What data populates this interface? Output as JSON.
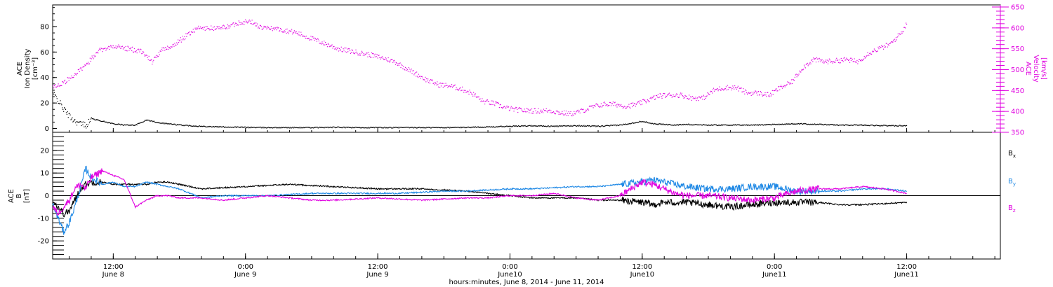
{
  "colors": {
    "axis": "#000000",
    "density": "#000000",
    "velocity": "#e000e0",
    "bx": "#000000",
    "by": "#1e88e5",
    "bz": "#e000e0"
  },
  "xaxis": {
    "label": "hours:minutes, June  8, 2014 - June 11, 2014",
    "range_hours": [
      6.5,
      92.5
    ],
    "ticks": [
      {
        "hour": 12,
        "time": "12:00",
        "day": "June 8"
      },
      {
        "hour": 24,
        "time": "0:00",
        "day": "June 9"
      },
      {
        "hour": 36,
        "time": "12:00",
        "day": "June 9"
      },
      {
        "hour": 48,
        "time": "0:00",
        "day": "June10"
      },
      {
        "hour": 60,
        "time": "12:00",
        "day": "June10"
      },
      {
        "hour": 72,
        "time": "0:00",
        "day": "June11"
      },
      {
        "hour": 84,
        "time": "12:00",
        "day": "June11"
      }
    ]
  },
  "chart_data": [
    {
      "type": "scatter",
      "panel": "top",
      "ylabel_left": [
        "ACE",
        "Ion Density",
        "[cm⁻³]"
      ],
      "ylabel_right": [
        "ACE",
        "Velocity",
        "[km/s]"
      ],
      "ylim_left": [
        -3,
        97
      ],
      "yticks_left": [
        0,
        20,
        40,
        60,
        80
      ],
      "ylim_right": [
        350,
        655
      ],
      "yticks_right": [
        350,
        400,
        450,
        500,
        550,
        600,
        650
      ],
      "series": [
        {
          "key": "density",
          "axis": "left",
          "x_hours": [
            6.5,
            7,
            7.5,
            8,
            8.5,
            9,
            9.5,
            10,
            11,
            12,
            13,
            14,
            15,
            16,
            17,
            18,
            19,
            20,
            22,
            24,
            26,
            28,
            30,
            32,
            34,
            36,
            38,
            40,
            42,
            44,
            46,
            48,
            50,
            52,
            54,
            56,
            58,
            60,
            61,
            62,
            63,
            64,
            66,
            68,
            70,
            72,
            74,
            76,
            78,
            80,
            82,
            84
          ],
          "values": [
            28,
            22,
            15,
            10,
            6,
            4,
            3,
            8,
            6,
            4,
            3,
            3,
            7,
            5,
            4,
            3,
            2.5,
            2,
            1.5,
            1.2,
            1,
            1,
            1,
            1.2,
            1,
            1,
            1,
            1,
            1,
            1.2,
            1.5,
            2,
            2.5,
            2,
            2.5,
            2,
            3,
            6,
            4,
            3.5,
            3,
            3.5,
            3,
            3,
            3,
            3.5,
            4,
            3.5,
            3,
            3,
            2.5,
            2.5
          ]
        },
        {
          "key": "velocity",
          "axis": "right",
          "x_hours": [
            6.5,
            7.5,
            8.5,
            9.5,
            10.5,
            11.5,
            12.5,
            13.5,
            14.5,
            15.5,
            16.5,
            17.5,
            18.5,
            19.5,
            20.5,
            21.5,
            22.5,
            23.5,
            24.5,
            25.5,
            26.5,
            27.5,
            28.5,
            29.5,
            30.5,
            31.5,
            32.5,
            33.5,
            34.5,
            35.5,
            36.5,
            37.5,
            38.5,
            39.5,
            40.5,
            41.5,
            42.5,
            43.5,
            44.5,
            45.5,
            46.5,
            47.5,
            48.5,
            49.5,
            50.5,
            51.5,
            52.5,
            53.5,
            54.5,
            55.5,
            56.5,
            57.5,
            58.5,
            59.5,
            60.5,
            61.5,
            62.5,
            63.5,
            64.5,
            65.5,
            66.5,
            67.5,
            68.5,
            69.5,
            70.5,
            71.5,
            72.5,
            73.5,
            74.5,
            75.5,
            76.5,
            77.5,
            78.5,
            79.5,
            80.5,
            81.5,
            82.5,
            83.5,
            84.0
          ],
          "values": [
            460,
            470,
            490,
            510,
            545,
            555,
            555,
            550,
            545,
            520,
            550,
            560,
            580,
            600,
            600,
            600,
            605,
            615,
            615,
            600,
            600,
            595,
            590,
            580,
            570,
            560,
            550,
            545,
            540,
            535,
            528,
            520,
            505,
            490,
            475,
            465,
            462,
            455,
            445,
            425,
            420,
            410,
            405,
            403,
            402,
            403,
            398,
            395,
            402,
            412,
            418,
            418,
            413,
            418,
            428,
            438,
            440,
            440,
            433,
            433,
            452,
            458,
            458,
            445,
            445,
            440,
            458,
            470,
            505,
            525,
            520,
            522,
            525,
            520,
            540,
            552,
            562,
            590,
            612
          ]
        }
      ]
    },
    {
      "type": "line",
      "panel": "bottom",
      "ylabel_left": [
        "ACE",
        "B",
        "[nT]"
      ],
      "ylim": [
        -28,
        28
      ],
      "yticks": [
        -20,
        -10,
        0,
        10,
        20
      ],
      "zero_line": true,
      "series": [
        {
          "key": "bx",
          "name": "Bx",
          "x_hours": [
            6.5,
            7,
            7.5,
            8,
            8.5,
            9,
            9.5,
            10,
            11,
            12,
            13,
            14,
            15,
            16,
            17,
            18,
            19,
            20,
            22,
            24,
            26,
            28,
            30,
            32,
            34,
            36,
            38,
            40,
            42,
            44,
            46,
            48,
            50,
            52,
            54,
            56,
            58,
            60,
            61,
            62,
            63,
            64,
            66,
            68,
            70,
            72,
            74,
            76,
            78,
            80,
            82,
            84
          ],
          "values": [
            -2,
            -5,
            -8,
            -7,
            -2,
            3,
            5,
            6,
            6,
            5,
            5,
            5,
            5,
            6,
            6,
            5,
            4,
            3,
            3.5,
            4,
            4.5,
            5,
            4.5,
            4,
            3.5,
            3,
            3,
            3,
            2.5,
            2,
            1,
            0,
            -1,
            -1,
            -1,
            -2,
            -2,
            -3,
            -4,
            -3,
            -3,
            -3,
            -4,
            -5,
            -4,
            -3,
            -3,
            -3,
            -4,
            -4,
            -3.5,
            -3
          ]
        },
        {
          "key": "by",
          "name": "By",
          "x_hours": [
            6.5,
            7,
            7.5,
            8,
            8.5,
            9,
            9.5,
            10,
            11,
            12,
            13,
            14,
            15,
            16,
            17,
            18,
            19,
            20,
            22,
            24,
            26,
            28,
            30,
            32,
            34,
            36,
            38,
            40,
            42,
            44,
            46,
            48,
            50,
            52,
            54,
            56,
            58,
            60,
            61,
            62,
            63,
            64,
            66,
            68,
            70,
            72,
            74,
            76,
            78,
            80,
            82,
            84
          ],
          "values": [
            -4,
            -10,
            -16,
            -12,
            -5,
            3,
            12,
            8,
            5,
            6,
            4,
            4,
            6,
            5,
            4,
            3,
            1,
            -1,
            0,
            0,
            0,
            0.5,
            1,
            1,
            1,
            1,
            1,
            1.5,
            2,
            2,
            2.5,
            3,
            3,
            3.5,
            4,
            4,
            5,
            6,
            7,
            6,
            5,
            4,
            3,
            3,
            4,
            4,
            2,
            2,
            2,
            3,
            3,
            2
          ]
        },
        {
          "key": "bz",
          "name": "Bz",
          "x_hours": [
            6.5,
            7,
            7.5,
            8,
            8.5,
            9,
            9.5,
            10,
            11,
            12,
            13,
            14,
            15,
            16,
            17,
            18,
            19,
            20,
            22,
            24,
            26,
            28,
            30,
            32,
            34,
            36,
            38,
            40,
            42,
            44,
            46,
            48,
            50,
            52,
            54,
            56,
            58,
            60,
            61,
            62,
            63,
            64,
            66,
            68,
            70,
            72,
            74,
            76,
            78,
            80,
            82,
            84
          ],
          "values": [
            -5,
            -8,
            -5,
            -2,
            3,
            5,
            3,
            8,
            11,
            9,
            7,
            -5,
            -2,
            0,
            0,
            -1,
            -1,
            -1,
            -2,
            -1,
            0,
            -1,
            -2,
            -2,
            -1.5,
            -1,
            -1.5,
            -2,
            -1.5,
            -1,
            -1,
            0,
            0,
            1,
            -1,
            -2,
            0,
            6,
            5,
            3,
            1,
            0,
            0,
            -1,
            -2,
            -1,
            2,
            3,
            3,
            4,
            3,
            1
          ]
        }
      ]
    }
  ],
  "legend": {
    "bx": "B",
    "bx_sub": "x",
    "by": "B",
    "by_sub": "y",
    "bz": "B",
    "bz_sub": "z"
  }
}
